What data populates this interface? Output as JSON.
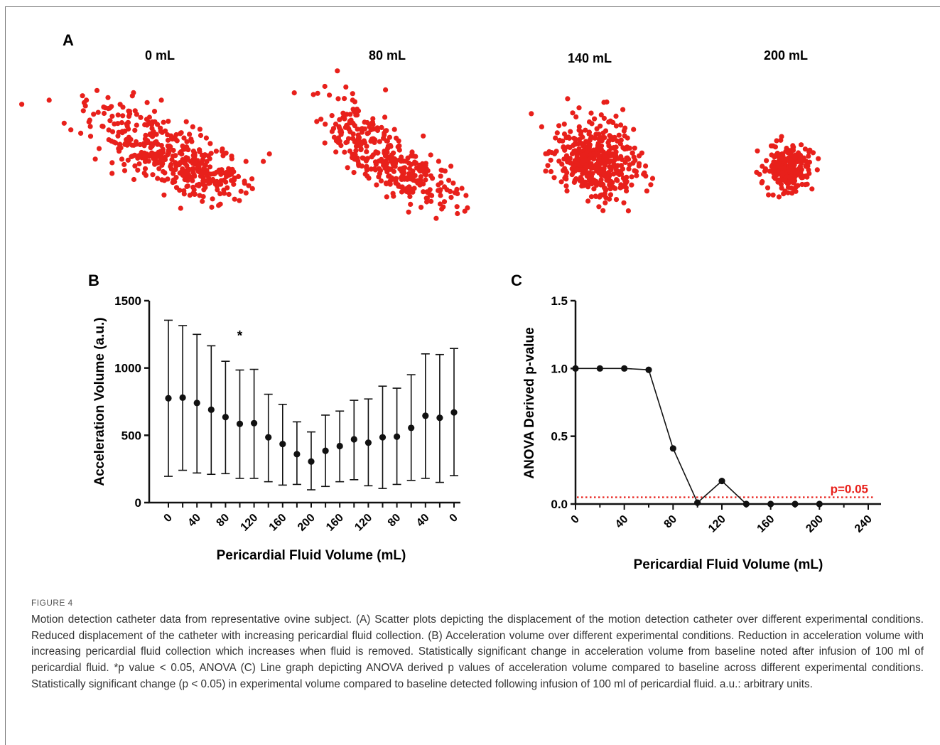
{
  "panel_labels": {
    "a": "A",
    "b": "B",
    "c": "C"
  },
  "colors": {
    "scatter": "#e8201b",
    "ink": "#111111",
    "threshold": "#e8201b"
  },
  "figure_label": "FIGURE 4",
  "caption": "Motion detection catheter data from representative ovine subject. (A) Scatter plots depicting the displacement of the motion detection catheter over different experimental conditions. Reduced displacement of the catheter with increasing pericardial fluid collection. (B) Acceleration volume over different experimental conditions. Reduction in acceleration volume with increasing pericardial fluid collection which increases when fluid is removed. Statistically significant change in acceleration volume from baseline noted after infusion of 100 ml of pericardial fluid. *p value < 0.05, ANOVA (C) Line graph depicting ANOVA derived p values of acceleration volume compared to baseline across different experimental conditions. Statistically significant change (p < 0.05) in experimental volume compared to baseline detected following infusion of 100 ml of pericardial fluid. a.u.: arbitrary units.",
  "chart_data": [
    {
      "type": "scatter",
      "panel": "A",
      "title": "",
      "subplots": [
        {
          "label": "0 mL",
          "spread": "wide, elongated diagonal"
        },
        {
          "label": "80 mL",
          "spread": "elongated diagonal"
        },
        {
          "label": "140 mL",
          "spread": "compact"
        },
        {
          "label": "200 mL",
          "spread": "small, compact"
        }
      ]
    },
    {
      "type": "scatter",
      "panel": "B",
      "xlabel": "Pericardial Fluid Volume (mL)",
      "ylabel": "Acceleration Volume (a.u.)",
      "ylim": [
        0,
        1500
      ],
      "yticks": [
        "0",
        "500",
        "1000",
        "1500"
      ],
      "categories": [
        "0",
        "20",
        "40",
        "60",
        "80",
        "100",
        "120",
        "140",
        "160",
        "180",
        "200",
        "180",
        "160",
        "140",
        "120",
        "100",
        "80",
        "60",
        "40",
        "20",
        "0"
      ],
      "tick_labels": [
        "0",
        "",
        "40",
        "",
        "80",
        "",
        "120",
        "",
        "160",
        "",
        "200",
        "",
        "160",
        "",
        "120",
        "",
        "80",
        "",
        "40",
        "",
        "0"
      ],
      "series": [
        {
          "values": [
            775,
            780,
            740,
            690,
            635,
            585,
            590,
            485,
            435,
            360,
            305,
            385,
            420,
            470,
            445,
            485,
            490,
            555,
            645,
            630,
            670
          ],
          "err_low": [
            195,
            240,
            220,
            210,
            215,
            180,
            180,
            155,
            130,
            135,
            95,
            120,
            155,
            170,
            125,
            105,
            135,
            165,
            180,
            150,
            200
          ],
          "err_high": [
            1355,
            1315,
            1250,
            1165,
            1050,
            985,
            990,
            805,
            730,
            600,
            525,
            650,
            680,
            760,
            770,
            865,
            850,
            950,
            1105,
            1100,
            1145
          ]
        }
      ],
      "annotations": [
        {
          "text": "*",
          "category_index": 5,
          "value": 1270
        }
      ]
    },
    {
      "type": "line",
      "panel": "C",
      "xlabel": "Pericardial Fluid Volume (mL)",
      "ylabel": "ANOVA Derived p-value",
      "xlim": [
        0,
        240
      ],
      "ylim": [
        0,
        1.5
      ],
      "xticks": [
        0,
        40,
        80,
        120,
        160,
        200,
        240
      ],
      "yticks": [
        "0.0",
        "0.5",
        "1.0",
        "1.5"
      ],
      "series": [
        {
          "x": [
            0,
            20,
            40,
            60,
            80,
            100,
            120,
            140,
            160,
            180,
            200
          ],
          "y": [
            1.0,
            1.0,
            1.0,
            0.99,
            0.41,
            0.01,
            0.17,
            0.0,
            0.0,
            0.0,
            0.0
          ]
        }
      ],
      "threshold": {
        "value": 0.05,
        "label": "p=0.05"
      }
    }
  ]
}
